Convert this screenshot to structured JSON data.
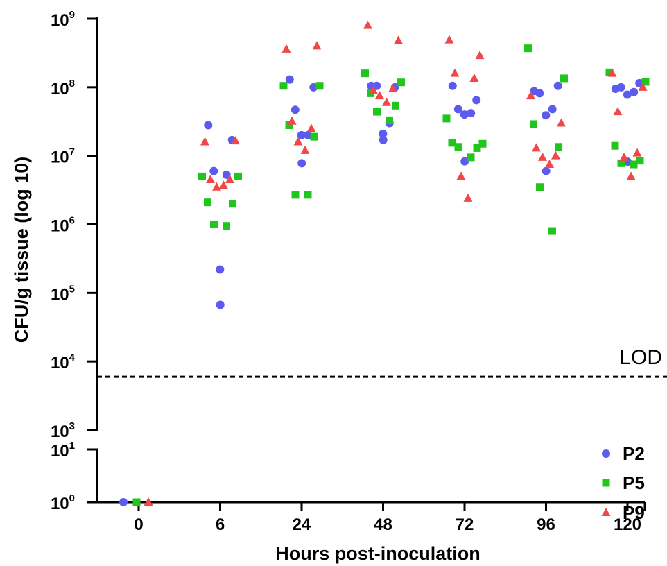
{
  "chart_data": {
    "type": "scatter",
    "xlabel": "Hours post-inoculation",
    "ylabel": "CFU/g tissue (log 10)",
    "categories": [
      "0",
      "6",
      "24",
      "48",
      "72",
      "96",
      "120"
    ],
    "y_scale": "log",
    "y_axis_broken": true,
    "y_segments": [
      {
        "range": [
          1,
          10
        ],
        "ticks": [
          {
            "base": "10",
            "exp": "0"
          },
          {
            "base": "10",
            "exp": "1"
          }
        ]
      },
      {
        "range": [
          1000,
          1000000000
        ],
        "ticks": [
          {
            "base": "10",
            "exp": "3"
          },
          {
            "base": "10",
            "exp": "4"
          },
          {
            "base": "10",
            "exp": "5"
          },
          {
            "base": "10",
            "exp": "6"
          },
          {
            "base": "10",
            "exp": "7"
          },
          {
            "base": "10",
            "exp": "8"
          },
          {
            "base": "10",
            "exp": "9"
          }
        ]
      }
    ],
    "reference_line": {
      "label": "LOD",
      "value": 6000
    },
    "legend_position": "bottom-right",
    "series": [
      {
        "name": "P2",
        "color": "#5b5bf0",
        "marker": "circle",
        "points": [
          {
            "x": "0",
            "y": 1
          },
          {
            "x": "6",
            "y": 28000000
          },
          {
            "x": "6",
            "y": 17000000
          },
          {
            "x": "6",
            "y": 6000000
          },
          {
            "x": "6",
            "y": 5300000
          },
          {
            "x": "6",
            "y": 220000
          },
          {
            "x": "6",
            "y": 67000
          },
          {
            "x": "24",
            "y": 130000000
          },
          {
            "x": "24",
            "y": 100000000
          },
          {
            "x": "24",
            "y": 47000000
          },
          {
            "x": "24",
            "y": 20000000
          },
          {
            "x": "24",
            "y": 20000000
          },
          {
            "x": "24",
            "y": 7800000
          },
          {
            "x": "48",
            "y": 105000000
          },
          {
            "x": "48",
            "y": 100000000
          },
          {
            "x": "48",
            "y": 105000000
          },
          {
            "x": "48",
            "y": 30000000
          },
          {
            "x": "48",
            "y": 21000000
          },
          {
            "x": "48",
            "y": 17000000
          },
          {
            "x": "72",
            "y": 105000000
          },
          {
            "x": "72",
            "y": 65000000
          },
          {
            "x": "72",
            "y": 48000000
          },
          {
            "x": "72",
            "y": 42000000
          },
          {
            "x": "72",
            "y": 40000000
          },
          {
            "x": "72",
            "y": 8300000
          },
          {
            "x": "96",
            "y": 88000000
          },
          {
            "x": "96",
            "y": 105000000
          },
          {
            "x": "96",
            "y": 82000000
          },
          {
            "x": "96",
            "y": 48000000
          },
          {
            "x": "96",
            "y": 39000000
          },
          {
            "x": "96",
            "y": 6000000
          },
          {
            "x": "120",
            "y": 95000000
          },
          {
            "x": "120",
            "y": 115000000
          },
          {
            "x": "120",
            "y": 100000000
          },
          {
            "x": "120",
            "y": 85000000
          },
          {
            "x": "120",
            "y": 78000000
          },
          {
            "x": "120",
            "y": 8200000
          }
        ]
      },
      {
        "name": "P5",
        "color": "#22c41e",
        "marker": "square",
        "points": [
          {
            "x": "0",
            "y": 1
          },
          {
            "x": "6",
            "y": 5000000
          },
          {
            "x": "6",
            "y": 5000000
          },
          {
            "x": "6",
            "y": 2100000
          },
          {
            "x": "6",
            "y": 2000000
          },
          {
            "x": "6",
            "y": 1000000
          },
          {
            "x": "6",
            "y": 950000
          },
          {
            "x": "24",
            "y": 105000000
          },
          {
            "x": "24",
            "y": 105000000
          },
          {
            "x": "24",
            "y": 28000000
          },
          {
            "x": "24",
            "y": 19000000
          },
          {
            "x": "24",
            "y": 2700000
          },
          {
            "x": "24",
            "y": 2700000
          },
          {
            "x": "48",
            "y": 160000000
          },
          {
            "x": "48",
            "y": 118000000
          },
          {
            "x": "48",
            "y": 82000000
          },
          {
            "x": "48",
            "y": 54000000
          },
          {
            "x": "48",
            "y": 44000000
          },
          {
            "x": "48",
            "y": 33000000
          },
          {
            "x": "72",
            "y": 35000000
          },
          {
            "x": "72",
            "y": 15000000
          },
          {
            "x": "72",
            "y": 15500000
          },
          {
            "x": "72",
            "y": 13000000
          },
          {
            "x": "72",
            "y": 13500000
          },
          {
            "x": "72",
            "y": 9500000
          },
          {
            "x": "96",
            "y": 370000000
          },
          {
            "x": "96",
            "y": 135000000
          },
          {
            "x": "96",
            "y": 29000000
          },
          {
            "x": "96",
            "y": 13500000
          },
          {
            "x": "96",
            "y": 3500000
          },
          {
            "x": "96",
            "y": 800000
          },
          {
            "x": "120",
            "y": 165000000
          },
          {
            "x": "120",
            "y": 120000000
          },
          {
            "x": "120",
            "y": 14000000
          },
          {
            "x": "120",
            "y": 8500000
          },
          {
            "x": "120",
            "y": 7800000
          },
          {
            "x": "120",
            "y": 7500000
          }
        ]
      },
      {
        "name": "P9",
        "color": "#f04848",
        "marker": "triangle",
        "points": [
          {
            "x": "0",
            "y": 1
          },
          {
            "x": "6",
            "y": 16000000
          },
          {
            "x": "6",
            "y": 16500000
          },
          {
            "x": "6",
            "y": 4500000
          },
          {
            "x": "6",
            "y": 4500000
          },
          {
            "x": "6",
            "y": 3500000
          },
          {
            "x": "6",
            "y": 3700000
          },
          {
            "x": "24",
            "y": 360000000
          },
          {
            "x": "24",
            "y": 400000000
          },
          {
            "x": "24",
            "y": 32000000
          },
          {
            "x": "24",
            "y": 25000000
          },
          {
            "x": "24",
            "y": 16000000
          },
          {
            "x": "24",
            "y": 12000000
          },
          {
            "x": "48",
            "y": 800000000
          },
          {
            "x": "48",
            "y": 480000000
          },
          {
            "x": "48",
            "y": 90000000
          },
          {
            "x": "48",
            "y": 95000000
          },
          {
            "x": "48",
            "y": 75000000
          },
          {
            "x": "48",
            "y": 60000000
          },
          {
            "x": "72",
            "y": 490000000
          },
          {
            "x": "72",
            "y": 290000000
          },
          {
            "x": "72",
            "y": 160000000
          },
          {
            "x": "72",
            "y": 135000000
          },
          {
            "x": "72",
            "y": 5000000
          },
          {
            "x": "72",
            "y": 2400000
          },
          {
            "x": "96",
            "y": 75000000
          },
          {
            "x": "96",
            "y": 30000000
          },
          {
            "x": "96",
            "y": 13000000
          },
          {
            "x": "96",
            "y": 10000000
          },
          {
            "x": "96",
            "y": 9500000
          },
          {
            "x": "96",
            "y": 7500000
          },
          {
            "x": "120",
            "y": 160000000
          },
          {
            "x": "120",
            "y": 100000000
          },
          {
            "x": "120",
            "y": 44000000
          },
          {
            "x": "120",
            "y": 11000000
          },
          {
            "x": "120",
            "y": 9500000
          },
          {
            "x": "120",
            "y": 5000000
          }
        ]
      }
    ]
  }
}
